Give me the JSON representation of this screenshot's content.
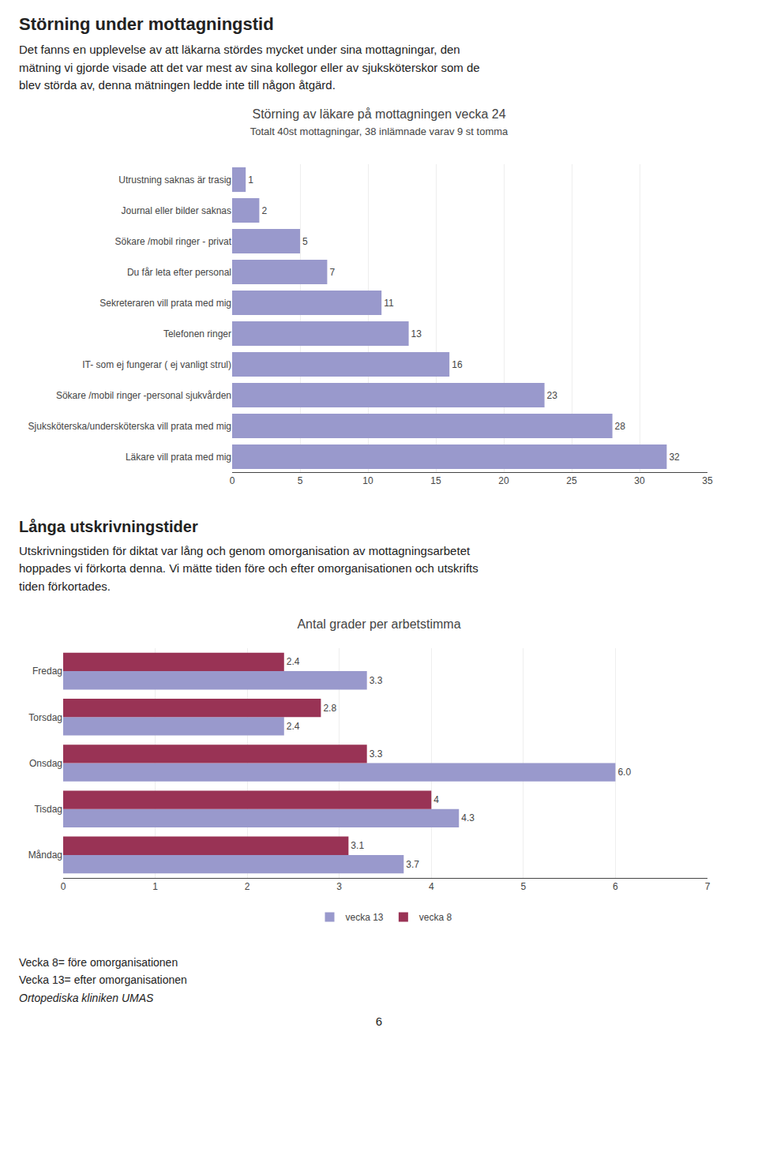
{
  "page_title1": "Störning under mottagningstid",
  "page_text1": "Det fanns en upplevelse av att läkarna stördes mycket under sina mottagningar, den\nmätning vi gjorde visade att det var mest av sina kollegor eller av sjuksköterskor som de\nblev störda av, denna mätningen ledde inte till någon åtgärd.",
  "page_title2": "Långa utskrivningstider",
  "page_text2": "Utskrivningstiden för diktat var lång och genom omorganisation av mottagningsarbetet\nhoppades vi förkorta denna. Vi mätte tiden före och efter omorganisationen och utskrifts\ntiden förkortades.",
  "footer": [
    "Vecka 8= före omorganisationen",
    "Vecka 13= efter omorganisationen",
    "Ortopediska kliniken UMAS"
  ],
  "page_number": "6",
  "chart_data": [
    {
      "type": "bar",
      "orientation": "horizontal",
      "title": "Störning av läkare på mottagningen vecka 24",
      "subtitle": "Totalt 40st mottagningar, 38 inlämnade varav 9 st tomma",
      "categories": [
        "Läkare vill prata med mig",
        "Sjuksköterska/undersköterska vill prata med mig",
        "Sökare /mobil ringer -personal sjukvården",
        "IT- som ej fungerar ( ej vanligt strul)",
        "Telefonen ringer",
        "Sekreteraren vill prata med mig",
        "Du får leta efter personal",
        "Sökare /mobil ringer - privat",
        "Journal eller bilder saknas",
        "Utrustning saknas är trasig"
      ],
      "values": [
        32,
        28,
        23,
        16,
        13,
        11,
        7,
        5,
        2,
        1
      ],
      "color": "#9999cc",
      "xlim": [
        0,
        35
      ],
      "xticks": [
        0,
        5,
        10,
        15,
        20,
        25,
        30,
        35
      ],
      "grid": true,
      "data_labels": true
    },
    {
      "type": "bar",
      "orientation": "horizontal",
      "title": "Antal grader per arbetstimma",
      "categories": [
        "Måndag",
        "Tisdag",
        "Onsdag",
        "Torsdag",
        "Fredag"
      ],
      "series": [
        {
          "name": "vecka 13",
          "color": "#9999cc",
          "values": [
            3.7,
            4.3,
            6.0,
            2.4,
            3.3
          ],
          "value_labels": [
            "3.7",
            "4.3",
            "6.0",
            "2.4",
            "3.3"
          ]
        },
        {
          "name": "vecka 8",
          "color": "#993355",
          "values": [
            3.1,
            4.0,
            3.3,
            2.8,
            2.4
          ]
        }
      ],
      "xlim": [
        0,
        7
      ],
      "xticks": [
        0,
        1,
        2,
        3,
        4,
        5,
        6,
        7
      ],
      "grid": true,
      "legend": "bottom",
      "data_labels": true
    }
  ]
}
